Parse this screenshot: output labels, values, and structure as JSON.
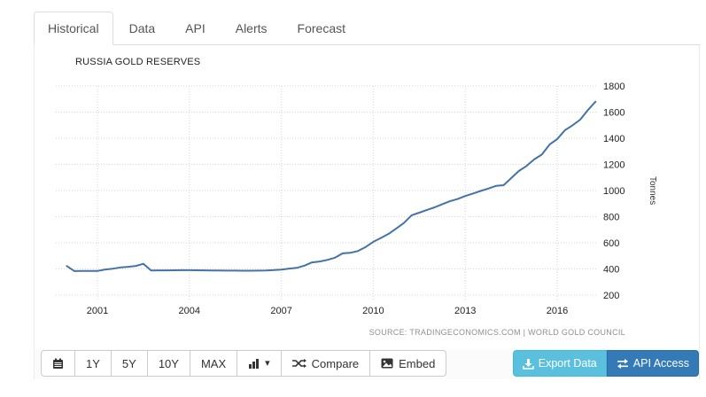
{
  "tabs": {
    "items": [
      {
        "label": "Historical",
        "active": true
      },
      {
        "label": "Data",
        "active": false
      },
      {
        "label": "API",
        "active": false
      },
      {
        "label": "Alerts",
        "active": false
      },
      {
        "label": "Forecast",
        "active": false
      }
    ]
  },
  "chart": {
    "title": "RUSSIA GOLD RESERVES",
    "y_axis_title": "Tonnes",
    "source": "SOURCE: TRADINGECONOMICS.COM | WORLD GOLD COUNCIL",
    "line_color": "#4572a7",
    "grid_color": "#d6d6d6",
    "label_color": "#222222"
  },
  "chart_data": {
    "type": "line",
    "title": "RUSSIA GOLD RESERVES",
    "xlabel": "",
    "ylabel": "Tonnes",
    "xticks": [
      2001,
      2004,
      2007,
      2010,
      2013,
      2016
    ],
    "yticks": [
      200,
      400,
      600,
      800,
      1000,
      1200,
      1400,
      1600,
      1800
    ],
    "xlim": [
      2000,
      2017.25
    ],
    "ylim": [
      200,
      1800
    ],
    "grid": "dotted",
    "legend_position": "none",
    "x": [
      2000,
      2000.25,
      2000.5,
      2000.75,
      2001,
      2001.25,
      2001.5,
      2001.75,
      2002,
      2002.25,
      2002.5,
      2002.75,
      2003,
      2003.25,
      2003.5,
      2003.75,
      2004,
      2004.25,
      2004.5,
      2004.75,
      2005,
      2005.25,
      2005.5,
      2005.75,
      2006,
      2006.25,
      2006.5,
      2006.75,
      2007,
      2007.25,
      2007.5,
      2007.75,
      2008,
      2008.25,
      2008.5,
      2008.75,
      2009,
      2009.25,
      2009.5,
      2009.75,
      2010,
      2010.25,
      2010.5,
      2010.75,
      2011,
      2011.25,
      2011.5,
      2011.75,
      2012,
      2012.25,
      2012.5,
      2012.75,
      2013,
      2013.25,
      2013.5,
      2013.75,
      2014,
      2014.25,
      2014.5,
      2014.75,
      2015,
      2015.25,
      2015.5,
      2015.75,
      2016,
      2016.25,
      2016.5,
      2016.75,
      2017,
      2017.25
    ],
    "values": [
      422.6,
      384.0,
      384.4,
      384.4,
      384.4,
      395.6,
      402.0,
      411.6,
      416.3,
      423.0,
      439.6,
      388.8,
      389.1,
      389.4,
      389.8,
      390.2,
      390.5,
      389.9,
      389.2,
      388.5,
      387.8,
      387.1,
      386.9,
      386.6,
      386.5,
      386.9,
      388.2,
      390.9,
      395.4,
      402.8,
      407.9,
      425.0,
      450.2,
      457.0,
      468.9,
      486.0,
      519.0,
      523.7,
      536.9,
      568.4,
      607.7,
      637.6,
      668.6,
      709.8,
      752.0,
      811.1,
      830.4,
      851.5,
      871.0,
      895.7,
      918.0,
      934.9,
      957.8,
      976.9,
      996.4,
      1015.1,
      1035.2,
      1040.7,
      1094.7,
      1149.8,
      1187.5,
      1238.3,
      1275.0,
      1352.2,
      1392.9,
      1460.4,
      1498.7,
      1542.7,
      1615.2,
      1680.1
    ]
  },
  "toolbar": {
    "ranges": [
      "1Y",
      "5Y",
      "10Y",
      "MAX"
    ],
    "compare_label": "Compare",
    "embed_label": "Embed",
    "export_label": "Export Data",
    "api_label": "API Access",
    "export_color": "#5bc0de",
    "api_color": "#337ab7",
    "icons": [
      "calendar-icon",
      "bar-chart-icon",
      "caret-down-icon",
      "shuffle-icon",
      "picture-icon",
      "download-icon",
      "transfer-arrows-icon"
    ]
  }
}
